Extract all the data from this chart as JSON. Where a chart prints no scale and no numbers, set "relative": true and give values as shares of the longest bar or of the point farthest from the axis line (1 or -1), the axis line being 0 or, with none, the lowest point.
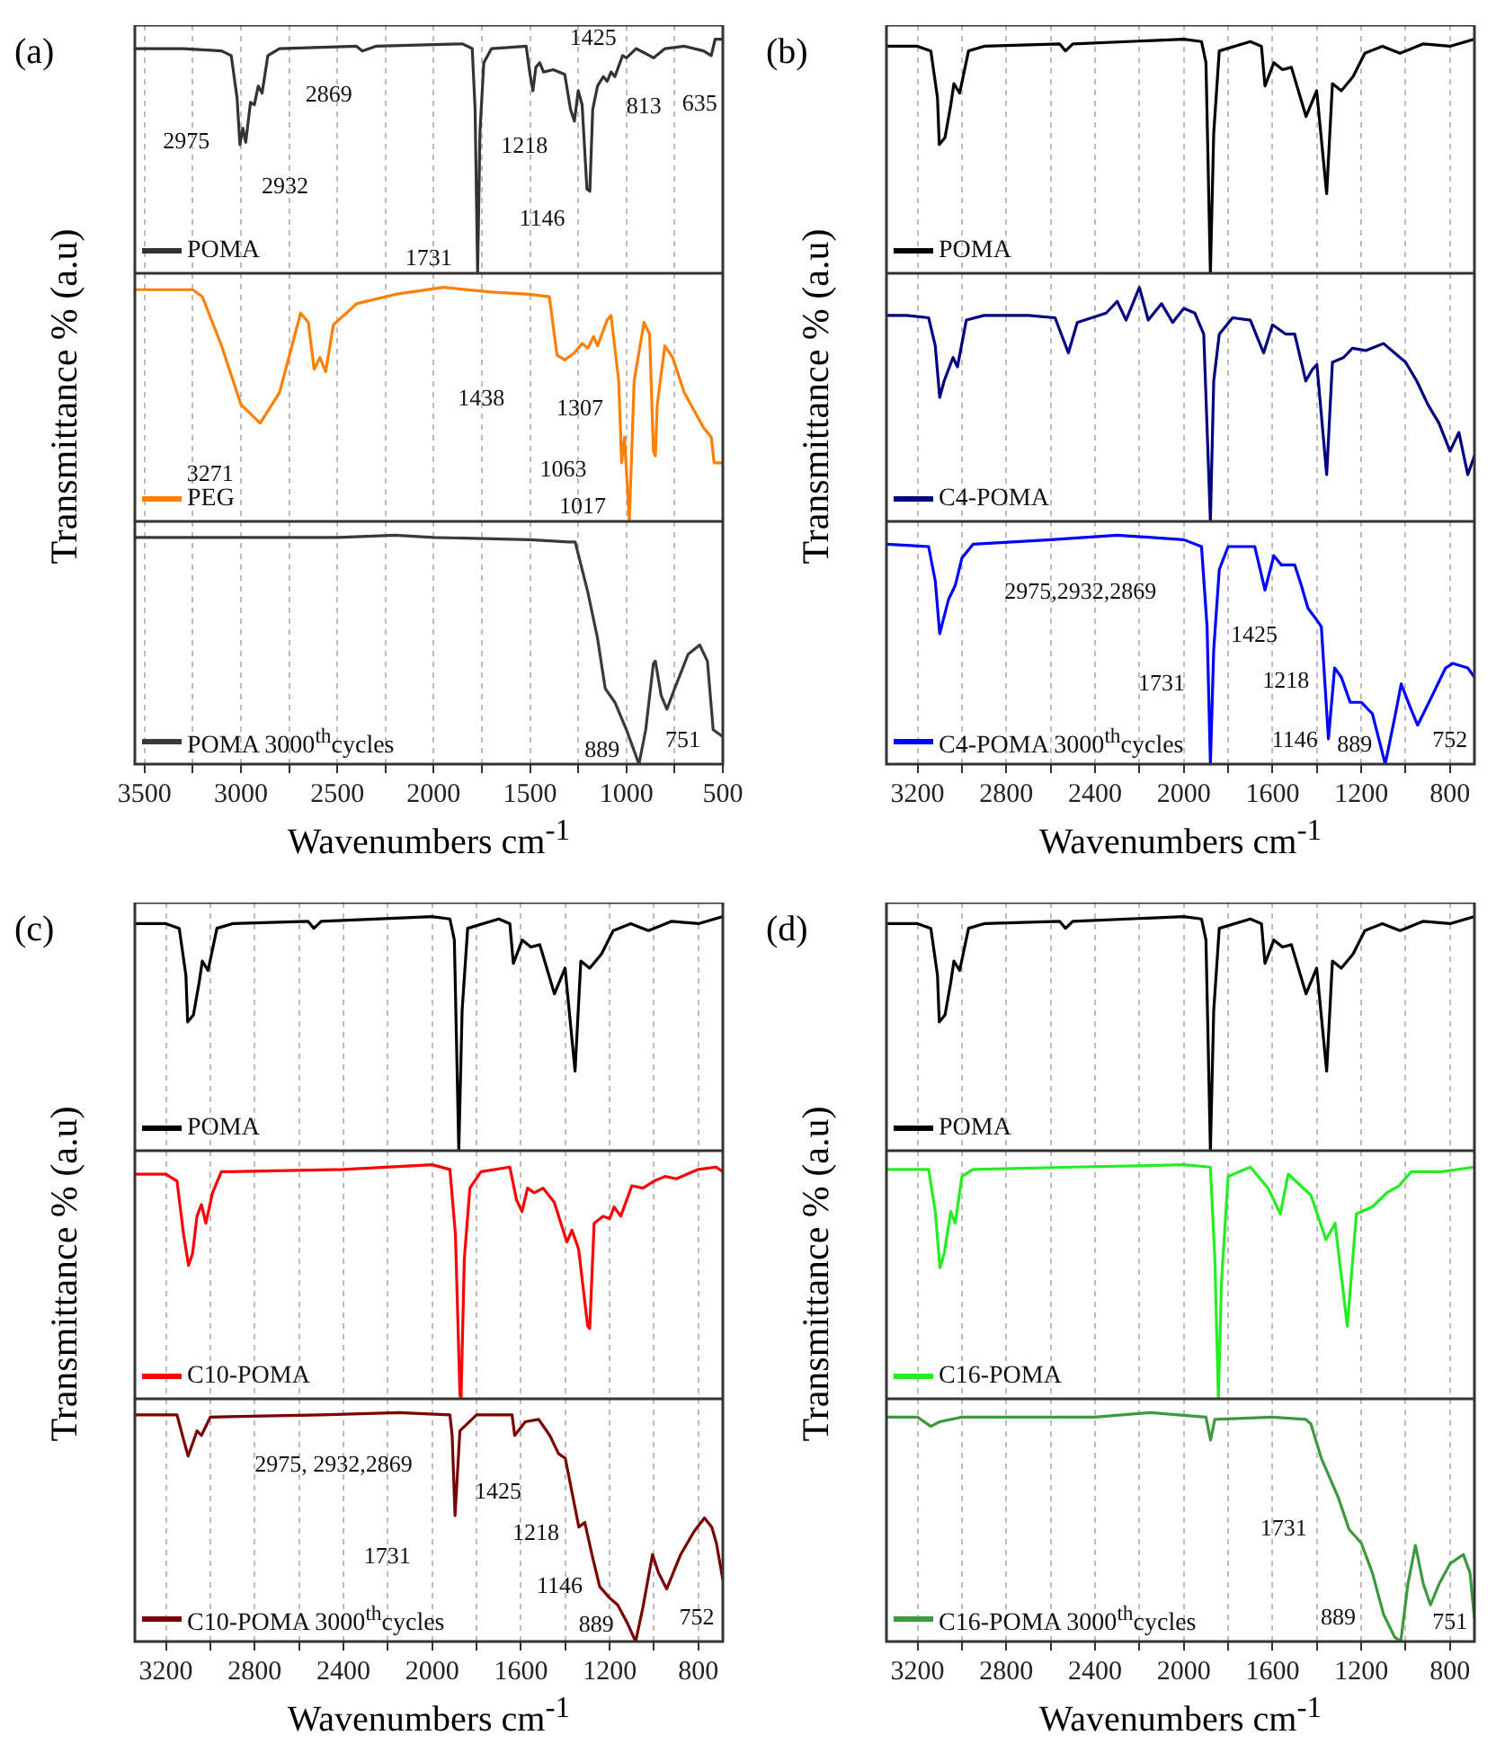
{
  "chart_data": [
    {
      "type": "line",
      "relative": true,
      "xlim": [
        3550,
        500
      ],
      "xticks": [
        3500,
        {
          "value": 3250,
          "label": null
        },
        3000,
        {
          "value": 2750,
          "label": null
        },
        2500,
        {
          "value": 2250,
          "label": null
        },
        2000,
        {
          "value": 1750,
          "label": null
        },
        1500,
        {
          "value": 1250,
          "label": null
        },
        1000,
        {
          "value": 750,
          "label": null
        },
        500
      ],
      "tick_labels": false,
      "grid": "x",
      "legend": "bottom left",
      "series": [
        {
          "name": "POMA",
          "color": "#333333",
          "x": [
            3550,
            3300,
            3100,
            3050,
            3020,
            3005,
            2990,
            2975,
            2950,
            2930,
            2910,
            2890,
            2860,
            2800,
            2400,
            2370,
            2300,
            1850,
            1800,
            1785,
            1772,
            1760,
            1740,
            1700,
            1520,
            1500,
            1485,
            1470,
            1450,
            1430,
            1380,
            1320,
            1290,
            1270,
            1250,
            1230,
            1205,
            1190,
            1175,
            1150,
            1120,
            1100,
            1080,
            1060,
            1020,
            1000,
            950,
            880,
            860,
            800,
            700,
            600,
            560,
            540,
            500
          ],
          "values": [
            0.96,
            0.96,
            0.95,
            0.93,
            0.75,
            0.55,
            0.62,
            0.56,
            0.73,
            0.72,
            0.8,
            0.77,
            0.93,
            0.96,
            0.97,
            0.95,
            0.97,
            0.98,
            0.96,
            0.7,
            0,
            0.6,
            0.9,
            0.96,
            0.97,
            0.85,
            0.78,
            0.88,
            0.9,
            0.86,
            0.87,
            0.85,
            0.7,
            0.65,
            0.78,
            0.72,
            0.36,
            0.35,
            0.7,
            0.8,
            0.84,
            0.82,
            0.86,
            0.84,
            0.93,
            0.92,
            0.96,
            0.93,
            0.92,
            0.96,
            0.97,
            0.95,
            0.93,
            1,
            1
          ]
        }
      ],
      "annotations": [
        "(a)",
        "2975",
        "2932",
        "2869",
        "1731",
        "1425",
        "1218",
        "1146",
        "813",
        "635"
      ]
    },
    {
      "type": "line",
      "relative": true,
      "xlim": [
        3550,
        500
      ],
      "xticks": [
        3500,
        {
          "value": 3250,
          "label": null
        },
        3000,
        {
          "value": 2750,
          "label": null
        },
        2500,
        {
          "value": 2250,
          "label": null
        },
        2000,
        {
          "value": 1750,
          "label": null
        },
        1500,
        {
          "value": 1250,
          "label": null
        },
        1000,
        {
          "value": 750,
          "label": null
        },
        500
      ],
      "tick_labels": false,
      "grid": "x",
      "legend": "bottom left",
      "ylabel": "Transmittance % (a.u)",
      "series": [
        {
          "name": "PEG",
          "color": "#ff8000",
          "x": [
            3550,
            3250,
            3200,
            3100,
            3000,
            2900,
            2800,
            2690,
            2650,
            2620,
            2590,
            2560,
            2520,
            2400,
            2200,
            1950,
            1700,
            1500,
            1400,
            1360,
            1320,
            1270,
            1230,
            1200,
            1170,
            1150,
            1100,
            1080,
            1040,
            1025,
            1010,
            985,
            960,
            909,
            880,
            860,
            850,
            840,
            801,
            760,
            700,
            600,
            560,
            545,
            500
          ],
          "values": [
            0.99,
            0.99,
            0.96,
            0.75,
            0.5,
            0.42,
            0.55,
            0.89,
            0.85,
            0.65,
            0.7,
            0.64,
            0.84,
            0.93,
            0.97,
            1,
            0.98,
            0.97,
            0.96,
            0.71,
            0.69,
            0.72,
            0.76,
            0.74,
            0.79,
            0.75,
            0.86,
            0.88,
            0.6,
            0.25,
            0.36,
            0,
            0.6,
            0.85,
            0.8,
            0.3,
            0.28,
            0.5,
            0.75,
            0.7,
            0.55,
            0.4,
            0.36,
            0.25,
            0.25
          ]
        }
      ],
      "annotations": [
        "3271",
        "1438",
        "1307",
        "1063",
        "1017"
      ]
    },
    {
      "type": "line",
      "relative": true,
      "xlim": [
        3550,
        500
      ],
      "xticks": [
        3500,
        {
          "value": 3250,
          "label": null
        },
        3000,
        {
          "value": 2750,
          "label": null
        },
        2500,
        {
          "value": 2250,
          "label": null
        },
        2000,
        {
          "value": 1750,
          "label": null
        },
        1500,
        {
          "value": 1250,
          "label": null
        },
        1000,
        {
          "value": 750,
          "label": null
        },
        500
      ],
      "tick_labels": "x",
      "grid": "x",
      "legend": "bottom left",
      "xlabel": "Wavenumbers cm$^{-1}$",
      "series": [
        {
          "name": "POMA 3000$^{th}$cycles",
          "color": "#3a3a3a",
          "x": [
            3550,
            2500,
            2200,
            2000,
            1500,
            1300,
            1266,
            1200,
            1150,
            1110,
            1060,
            1000,
            935,
            900,
            860,
            850,
            820,
            790,
            750,
            680,
            620,
            580,
            550,
            500
          ],
          "values": [
            0.99,
            0.99,
            1,
            0.99,
            0.98,
            0.97,
            0.97,
            0.75,
            0.55,
            0.33,
            0.27,
            0.15,
            0,
            0.15,
            0.44,
            0.45,
            0.3,
            0.24,
            0.33,
            0.48,
            0.52,
            0.45,
            0.15,
            0.12
          ]
        }
      ],
      "annotations": [
        "889",
        "751"
      ]
    },
    {
      "type": "line",
      "relative": true,
      "xlim": [
        3340,
        690
      ],
      "xticks": [
        3200,
        {
          "value": 3000,
          "label": null
        },
        2800,
        {
          "value": 2600,
          "label": null
        },
        2400,
        {
          "value": 2200,
          "label": null
        },
        2000,
        {
          "value": 1800,
          "label": null
        },
        1600,
        {
          "value": 1400,
          "label": null
        },
        1200,
        {
          "value": 1000,
          "label": null
        },
        800
      ],
      "tick_labels": false,
      "grid": "x",
      "legend": "bottom left",
      "series": [
        {
          "name": "POMA",
          "color": "#000000",
          "x": [
            3340,
            3200,
            3140,
            3110,
            3102,
            3076,
            3050,
            3036,
            3010,
            2970,
            2900,
            2560,
            2533,
            2500,
            2000,
            1920,
            1900,
            1880,
            1865,
            1840,
            1700,
            1650,
            1634,
            1594,
            1555,
            1515,
            1449,
            1401,
            1356,
            1330,
            1290,
            1237,
            1184,
            1105,
            1025,
            920,
            800,
            690
          ],
          "values": [
            0.97,
            0.97,
            0.95,
            0.75,
            0.55,
            0.58,
            0.72,
            0.81,
            0.77,
            0.95,
            0.97,
            0.98,
            0.95,
            0.98,
            1,
            0.99,
            0.9,
            0,
            0.6,
            0.95,
            0.99,
            0.97,
            0.8,
            0.9,
            0.87,
            0.88,
            0.67,
            0.78,
            0.34,
            0.81,
            0.78,
            0.84,
            0.94,
            0.97,
            0.94,
            0.98,
            0.97,
            1
          ]
        }
      ],
      "annotations": [
        "(b)"
      ]
    },
    {
      "type": "line",
      "relative": true,
      "xlim": [
        3340,
        690
      ],
      "xticks": [
        3200,
        {
          "value": 3000,
          "label": null
        },
        2800,
        {
          "value": 2600,
          "label": null
        },
        2400,
        {
          "value": 2200,
          "label": null
        },
        2000,
        {
          "value": 1800,
          "label": null
        },
        1600,
        {
          "value": 1400,
          "label": null
        },
        1200,
        {
          "value": 1000,
          "label": null
        },
        800
      ],
      "tick_labels": false,
      "grid": "x",
      "legend": "bottom left",
      "ylabel": "Transmittance % (a.u)",
      "series": [
        {
          "name": "C4-POMA",
          "color": "#000080",
          "x": [
            3340,
            3250,
            3150,
            3120,
            3100,
            3080,
            3040,
            3020,
            2980,
            2900,
            2700,
            2580,
            2520,
            2480,
            2350,
            2300,
            2260,
            2200,
            2160,
            2100,
            2050,
            2000,
            1950,
            1910,
            1880,
            1865,
            1840,
            1780,
            1700,
            1640,
            1600,
            1540,
            1500,
            1450,
            1420,
            1400,
            1356,
            1330,
            1280,
            1240,
            1180,
            1100,
            1050,
            1000,
            950,
            900,
            850,
            800,
            760,
            720,
            690
          ],
          "values": [
            0.88,
            0.88,
            0.87,
            0.75,
            0.53,
            0.6,
            0.7,
            0.66,
            0.86,
            0.88,
            0.88,
            0.87,
            0.72,
            0.85,
            0.89,
            0.94,
            0.86,
            1,
            0.86,
            0.93,
            0.85,
            0.91,
            0.89,
            0.8,
            0,
            0.6,
            0.8,
            0.87,
            0.86,
            0.72,
            0.84,
            0.8,
            0.8,
            0.6,
            0.65,
            0.67,
            0.2,
            0.68,
            0.7,
            0.74,
            0.73,
            0.76,
            0.72,
            0.68,
            0.6,
            0.5,
            0.42,
            0.3,
            0.38,
            0.2,
            0.28
          ]
        }
      ]
    },
    {
      "type": "line",
      "relative": true,
      "xlim": [
        3340,
        690
      ],
      "xticks": [
        3200,
        {
          "value": 3000,
          "label": null
        },
        2800,
        {
          "value": 2600,
          "label": null
        },
        2400,
        {
          "value": 2200,
          "label": null
        },
        2000,
        {
          "value": 1800,
          "label": null
        },
        1600,
        {
          "value": 1400,
          "label": null
        },
        1200,
        {
          "value": 1000,
          "label": null
        },
        800
      ],
      "tick_labels": "x",
      "grid": "x",
      "legend": "bottom left",
      "xlabel": "Wavenumbers cm$^{-1}$",
      "series": [
        {
          "name": "C4-POMA 3000$^{th}$cycles",
          "color": "#0000ff",
          "x": [
            3340,
            3150,
            3120,
            3100,
            3060,
            3030,
            3000,
            2950,
            2600,
            2300,
            2000,
            1920,
            1895,
            1880,
            1865,
            1840,
            1800,
            1680,
            1634,
            1594,
            1560,
            1500,
            1470,
            1440,
            1401,
            1380,
            1348,
            1320,
            1290,
            1250,
            1200,
            1150,
            1092,
            1050,
            1020,
            980,
            946,
            880,
            820,
            787,
            720,
            690
          ],
          "values": [
            0.96,
            0.95,
            0.8,
            0.57,
            0.72,
            0.78,
            0.9,
            0.96,
            0.98,
            1,
            0.98,
            0.95,
            0.6,
            0,
            0.5,
            0.85,
            0.95,
            0.95,
            0.76,
            0.91,
            0.87,
            0.87,
            0.78,
            0.68,
            0.63,
            0.6,
            0.11,
            0.42,
            0.38,
            0.27,
            0.27,
            0.22,
            0,
            0.2,
            0.35,
            0.25,
            0.17,
            0.3,
            0.42,
            0.44,
            0.42,
            0.38
          ]
        }
      ],
      "annotations": [
        "2975,2932,2869",
        "1425",
        "1218",
        "1146",
        "1731",
        "889",
        "752"
      ]
    },
    {
      "type": "line",
      "relative": true,
      "xlim": [
        3340,
        690
      ],
      "xticks": [
        3200,
        {
          "value": 3000,
          "label": null
        },
        2800,
        {
          "value": 2600,
          "label": null
        },
        2400,
        {
          "value": 2200,
          "label": null
        },
        2000,
        {
          "value": 1800,
          "label": null
        },
        1600,
        {
          "value": 1400,
          "label": null
        },
        1200,
        {
          "value": 1000,
          "label": null
        },
        800
      ],
      "tick_labels": false,
      "grid": "x",
      "legend": "bottom left",
      "series": [
        {
          "name": "POMA",
          "color": "#000000",
          "x": [
            3340,
            3200,
            3140,
            3110,
            3102,
            3076,
            3050,
            3036,
            3010,
            2970,
            2900,
            2560,
            2533,
            2500,
            2000,
            1920,
            1900,
            1880,
            1865,
            1840,
            1700,
            1650,
            1634,
            1594,
            1555,
            1515,
            1449,
            1401,
            1356,
            1330,
            1290,
            1237,
            1184,
            1105,
            1025,
            920,
            800,
            690
          ],
          "values": [
            0.97,
            0.97,
            0.95,
            0.75,
            0.55,
            0.58,
            0.72,
            0.81,
            0.77,
            0.95,
            0.97,
            0.98,
            0.95,
            0.98,
            1,
            0.99,
            0.9,
            0,
            0.6,
            0.95,
            0.99,
            0.97,
            0.8,
            0.9,
            0.87,
            0.88,
            0.67,
            0.78,
            0.34,
            0.81,
            0.78,
            0.84,
            0.94,
            0.97,
            0.94,
            0.98,
            0.97,
            1
          ]
        }
      ],
      "annotations": [
        "(c)"
      ]
    },
    {
      "type": "line",
      "relative": true,
      "xlim": [
        3340,
        690
      ],
      "xticks": [
        3200,
        {
          "value": 3000,
          "label": null
        },
        2800,
        {
          "value": 2600,
          "label": null
        },
        2400,
        {
          "value": 2200,
          "label": null
        },
        2000,
        {
          "value": 1800,
          "label": null
        },
        1600,
        {
          "value": 1400,
          "label": null
        },
        1200,
        {
          "value": 1000,
          "label": null
        },
        800
      ],
      "tick_labels": false,
      "grid": "x",
      "legend": "bottom left",
      "ylabel": "Transmittance % (a.u)",
      "series": [
        {
          "name": "C10-POMA",
          "color": "#ff0000",
          "x": [
            3340,
            3200,
            3150,
            3120,
            3098,
            3080,
            3060,
            3040,
            3020,
            2990,
            2950,
            2400,
            2000,
            1920,
            1895,
            1875,
            1870,
            1855,
            1830,
            1780,
            1650,
            1620,
            1595,
            1570,
            1540,
            1500,
            1450,
            1393,
            1370,
            1340,
            1299,
            1290,
            1270,
            1230,
            1200,
            1180,
            1150,
            1100,
            1050,
            1000,
            950,
            900,
            800,
            720,
            690
          ],
          "values": [
            0.96,
            0.96,
            0.93,
            0.7,
            0.57,
            0.62,
            0.78,
            0.83,
            0.75,
            0.88,
            0.97,
            0.98,
            1,
            0.98,
            0.7,
            0.02,
            0,
            0.6,
            0.9,
            0.97,
            0.99,
            0.85,
            0.8,
            0.9,
            0.88,
            0.9,
            0.84,
            0.67,
            0.72,
            0.64,
            0.31,
            0.3,
            0.75,
            0.78,
            0.77,
            0.82,
            0.78,
            0.91,
            0.9,
            0.93,
            0.95,
            0.94,
            0.98,
            0.99,
            0.97
          ]
        }
      ]
    },
    {
      "type": "line",
      "relative": true,
      "xlim": [
        3340,
        690
      ],
      "xticks": [
        3200,
        {
          "value": 3000,
          "label": null
        },
        2800,
        {
          "value": 2600,
          "label": null
        },
        2400,
        {
          "value": 2200,
          "label": null
        },
        2000,
        {
          "value": 1800,
          "label": null
        },
        1600,
        {
          "value": 1400,
          "label": null
        },
        1200,
        {
          "value": 1000,
          "label": null
        },
        800
      ],
      "tick_labels": "x",
      "grid": "x",
      "legend": "bottom left",
      "xlabel": "Wavenumbers cm$^{-1}$",
      "series": [
        {
          "name": "C10-POMA 3000$^{th}$cycles",
          "color": "#7a0000",
          "x": [
            3340,
            3150,
            3120,
            3100,
            3060,
            3040,
            3000,
            2500,
            2150,
            1920,
            1910,
            1897,
            1875,
            1800,
            1640,
            1628,
            1580,
            1520,
            1470,
            1430,
            1400,
            1339,
            1312,
            1280,
            1245,
            1200,
            1164,
            1120,
            1083,
            1050,
            1007,
            980,
            943,
            880,
            820,
            773,
            740,
            719,
            690
          ],
          "values": [
            0.99,
            0.99,
            0.88,
            0.81,
            0.92,
            0.9,
            0.98,
            0.99,
            1,
            0.99,
            0.9,
            0.55,
            0.92,
            0.99,
            0.99,
            0.9,
            0.96,
            0.97,
            0.9,
            0.82,
            0.8,
            0.5,
            0.52,
            0.38,
            0.24,
            0.19,
            0.16,
            0.08,
            0,
            0.15,
            0.38,
            0.3,
            0.23,
            0.38,
            0.48,
            0.54,
            0.5,
            0.43,
            0.27
          ]
        }
      ],
      "annotations": [
        "2975, 2932,2869",
        "1425",
        "1218",
        "1146",
        "1731",
        "889",
        "752"
      ]
    },
    {
      "type": "line",
      "relative": true,
      "xlim": [
        3340,
        690
      ],
      "xticks": [
        3200,
        {
          "value": 3000,
          "label": null
        },
        2800,
        {
          "value": 2600,
          "label": null
        },
        2400,
        {
          "value": 2200,
          "label": null
        },
        2000,
        {
          "value": 1800,
          "label": null
        },
        1600,
        {
          "value": 1400,
          "label": null
        },
        1200,
        {
          "value": 1000,
          "label": null
        },
        800
      ],
      "tick_labels": false,
      "grid": "x",
      "legend": "bottom left",
      "series": [
        {
          "name": "POMA",
          "color": "#000000",
          "x": [
            3340,
            3200,
            3140,
            3110,
            3102,
            3076,
            3050,
            3036,
            3010,
            2970,
            2900,
            2560,
            2533,
            2500,
            2000,
            1920,
            1900,
            1880,
            1865,
            1840,
            1700,
            1650,
            1634,
            1594,
            1555,
            1515,
            1449,
            1401,
            1356,
            1330,
            1290,
            1237,
            1184,
            1105,
            1025,
            920,
            800,
            690
          ],
          "values": [
            0.97,
            0.97,
            0.95,
            0.75,
            0.55,
            0.58,
            0.72,
            0.81,
            0.77,
            0.95,
            0.97,
            0.98,
            0.95,
            0.98,
            1,
            0.99,
            0.9,
            0,
            0.6,
            0.95,
            0.99,
            0.97,
            0.8,
            0.9,
            0.87,
            0.88,
            0.67,
            0.78,
            0.34,
            0.81,
            0.78,
            0.84,
            0.94,
            0.97,
            0.94,
            0.98,
            0.97,
            1
          ]
        }
      ],
      "annotations": [
        "(d)"
      ]
    },
    {
      "type": "line",
      "relative": true,
      "xlim": [
        3340,
        690
      ],
      "xticks": [
        3200,
        {
          "value": 3000,
          "label": null
        },
        2800,
        {
          "value": 2600,
          "label": null
        },
        2400,
        {
          "value": 2200,
          "label": null
        },
        2000,
        {
          "value": 1800,
          "label": null
        },
        1600,
        {
          "value": 1400,
          "label": null
        },
        1200,
        {
          "value": 1000,
          "label": null
        },
        800
      ],
      "tick_labels": false,
      "grid": "x",
      "legend": "bottom left",
      "ylabel": "Transmittance % (a.u)",
      "series": [
        {
          "name": "C16-POMA",
          "color": "#22ee22",
          "x": [
            3340,
            3150,
            3120,
            3099,
            3080,
            3050,
            3030,
            3000,
            2950,
            2500,
            2000,
            1880,
            1860,
            1844,
            1830,
            1800,
            1700,
            1620,
            1565,
            1529,
            1427,
            1359,
            1318,
            1263,
            1222,
            1150,
            1085,
            1030,
            975,
            838,
            690
          ],
          "values": [
            0.98,
            0.98,
            0.8,
            0.56,
            0.62,
            0.8,
            0.75,
            0.95,
            0.98,
            0.99,
            1,
            0.99,
            0.6,
            0,
            0.5,
            0.95,
            0.99,
            0.9,
            0.79,
            0.96,
            0.87,
            0.68,
            0.75,
            0.31,
            0.79,
            0.82,
            0.88,
            0.91,
            0.97,
            0.97,
            0.99
          ]
        }
      ]
    },
    {
      "type": "line",
      "relative": true,
      "xlim": [
        3340,
        690
      ],
      "xticks": [
        3200,
        {
          "value": 3000,
          "label": null
        },
        2800,
        {
          "value": 2600,
          "label": null
        },
        2400,
        {
          "value": 2200,
          "label": null
        },
        2000,
        {
          "value": 1800,
          "label": null
        },
        1600,
        {
          "value": 1400,
          "label": null
        },
        1200,
        {
          "value": 1000,
          "label": null
        },
        800
      ],
      "tick_labels": "x",
      "grid": "x",
      "legend": "bottom left",
      "xlabel": "Wavenumbers cm$^{-1}$",
      "series": [
        {
          "name": "C16-POMA 3000$^{th}$cycles",
          "color": "#3c9a3c",
          "x": [
            3340,
            3200,
            3140,
            3100,
            3000,
            2400,
            2150,
            1900,
            1879,
            1860,
            1600,
            1450,
            1427,
            1380,
            1304,
            1255,
            1200,
            1150,
            1100,
            1050,
            1022,
            990,
            956,
            920,
            888,
            850,
            800,
            740,
            710,
            690
          ],
          "values": [
            0.98,
            0.98,
            0.94,
            0.96,
            0.98,
            0.98,
            1,
            0.98,
            0.88,
            0.97,
            0.98,
            0.97,
            0.95,
            0.8,
            0.63,
            0.49,
            0.43,
            0.3,
            0.12,
            0.02,
            0,
            0.25,
            0.42,
            0.25,
            0.16,
            0.25,
            0.34,
            0.38,
            0.3,
            0.1
          ]
        }
      ],
      "annotations": [
        "1731",
        "889",
        "751"
      ]
    }
  ]
}
